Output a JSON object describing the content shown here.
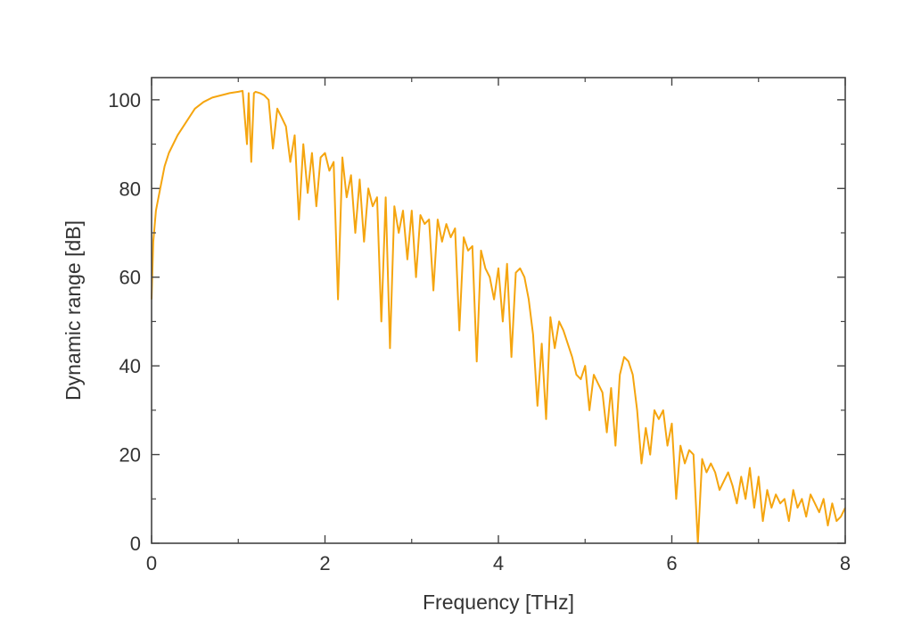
{
  "chart_data": {
    "type": "line",
    "title": "",
    "xlabel": "Frequency [THz]",
    "ylabel": "Dynamic range [dB]",
    "xlim": [
      0,
      8
    ],
    "ylim": [
      0,
      105
    ],
    "x_ticks": [
      0,
      2,
      4,
      6,
      8
    ],
    "x_tick_labels": [
      "0",
      "2",
      "4",
      "6",
      "8"
    ],
    "y_ticks": [
      0,
      20,
      40,
      60,
      80,
      100
    ],
    "y_tick_labels": [
      "0",
      "20",
      "40",
      "60",
      "80",
      "100"
    ],
    "grid": false,
    "legend": "none",
    "line_color": "#f5a50f",
    "series": [
      {
        "x": [
          0.0,
          0.02,
          0.05,
          0.1,
          0.15,
          0.2,
          0.3,
          0.4,
          0.5,
          0.6,
          0.7,
          0.8,
          0.9,
          1.0,
          1.05,
          1.1,
          1.12,
          1.15,
          1.18,
          1.2,
          1.25,
          1.3,
          1.35,
          1.4,
          1.45,
          1.5,
          1.55,
          1.6,
          1.65,
          1.7,
          1.75,
          1.8,
          1.85,
          1.9,
          1.95,
          2.0,
          2.05,
          2.1,
          2.15,
          2.2,
          2.25,
          2.3,
          2.35,
          2.4,
          2.45,
          2.5,
          2.55,
          2.6,
          2.65,
          2.7,
          2.75,
          2.8,
          2.85,
          2.9,
          2.95,
          3.0,
          3.05,
          3.1,
          3.15,
          3.2,
          3.25,
          3.3,
          3.35,
          3.4,
          3.45,
          3.5,
          3.55,
          3.6,
          3.65,
          3.7,
          3.75,
          3.8,
          3.85,
          3.9,
          3.95,
          4.0,
          4.05,
          4.1,
          4.15,
          4.2,
          4.25,
          4.3,
          4.35,
          4.4,
          4.45,
          4.5,
          4.55,
          4.6,
          4.65,
          4.7,
          4.75,
          4.8,
          4.85,
          4.9,
          4.95,
          5.0,
          5.05,
          5.1,
          5.15,
          5.2,
          5.25,
          5.3,
          5.35,
          5.4,
          5.45,
          5.5,
          5.55,
          5.6,
          5.65,
          5.7,
          5.75,
          5.8,
          5.85,
          5.9,
          5.95,
          6.0,
          6.05,
          6.1,
          6.15,
          6.2,
          6.25,
          6.3,
          6.35,
          6.4,
          6.45,
          6.5,
          6.55,
          6.6,
          6.65,
          6.7,
          6.75,
          6.8,
          6.85,
          6.9,
          6.95,
          7.0,
          7.05,
          7.1,
          7.15,
          7.2,
          7.25,
          7.3,
          7.35,
          7.4,
          7.45,
          7.5,
          7.55,
          7.6,
          7.65,
          7.7,
          7.75,
          7.8,
          7.85,
          7.9,
          7.95,
          8.0
        ],
        "values": [
          55,
          68,
          75,
          80,
          85,
          88,
          92,
          95,
          98,
          99.5,
          100.5,
          101,
          101.5,
          101.8,
          102,
          90,
          101.5,
          86,
          101.5,
          101.8,
          101.5,
          101,
          100,
          89,
          98,
          96,
          94,
          86,
          92,
          73,
          90,
          79,
          88,
          76,
          87,
          88,
          84,
          86,
          55,
          87,
          78,
          83,
          70,
          82,
          68,
          80,
          76,
          78,
          50,
          78,
          44,
          76,
          70,
          75,
          64,
          75,
          60,
          74,
          72,
          73,
          57,
          73,
          68,
          72,
          69,
          71,
          48,
          69,
          66,
          67,
          41,
          66,
          62,
          60,
          55,
          62,
          50,
          63,
          42,
          61,
          62,
          60,
          55,
          47,
          31,
          45,
          28,
          51,
          44,
          50,
          48,
          45,
          42,
          38,
          37,
          40,
          30,
          38,
          36,
          34,
          25,
          35,
          22,
          38,
          42,
          41,
          38,
          30,
          18,
          26,
          20,
          30,
          28,
          30,
          22,
          27,
          10,
          22,
          18,
          21,
          20,
          0,
          19,
          16,
          18,
          16,
          12,
          14,
          16,
          13,
          9,
          15,
          10,
          17,
          8,
          15,
          5,
          12,
          8,
          11,
          9,
          10,
          5,
          12,
          8,
          10,
          6,
          11,
          9,
          7,
          10,
          4,
          9,
          5,
          6,
          8
        ]
      }
    ]
  }
}
